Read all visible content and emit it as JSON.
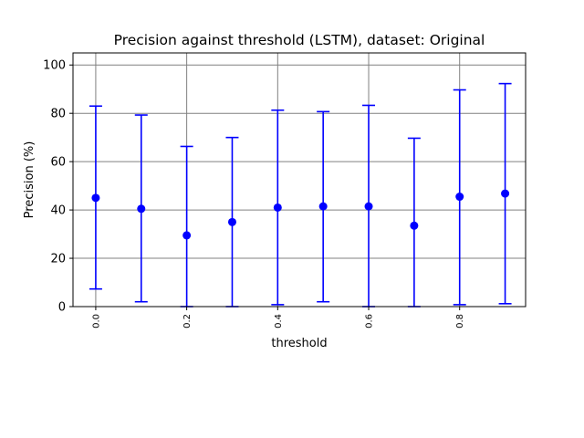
{
  "chart_data": {
    "type": "scatter",
    "title": "Precision against threshold (LSTM), dataset: Original",
    "xlabel": "threshold",
    "ylabel": "Precision (%)",
    "xlim": [
      -0.05,
      0.945
    ],
    "ylim": [
      0,
      105
    ],
    "grid": true,
    "legend": "none",
    "marker_color": "#0000ff",
    "grid_color": "#808080",
    "xticks": [
      0.0,
      0.2,
      0.4,
      0.6,
      0.8
    ],
    "xtick_labels": [
      "0.0",
      "0.2",
      "0.4",
      "0.6",
      "0.8"
    ],
    "yticks": [
      0,
      20,
      40,
      60,
      80,
      100
    ],
    "ytick_labels": [
      "0",
      "20",
      "40",
      "60",
      "80",
      "100"
    ],
    "series": [
      {
        "x": [
          0.0,
          0.1,
          0.2,
          0.3,
          0.4,
          0.5,
          0.6,
          0.7,
          0.8,
          0.9
        ],
        "y": [
          45,
          40.5,
          29.5,
          35,
          41,
          41.5,
          41.5,
          33.5,
          45.5,
          46.8
        ],
        "err_low": [
          7.3,
          2.0,
          0.0,
          0.0,
          0.8,
          2.0,
          0.0,
          0.0,
          0.8,
          1.2
        ],
        "err_high": [
          83,
          79.3,
          66.3,
          70,
          81.3,
          80.7,
          83.3,
          69.7,
          89.7,
          92.3
        ]
      }
    ]
  }
}
